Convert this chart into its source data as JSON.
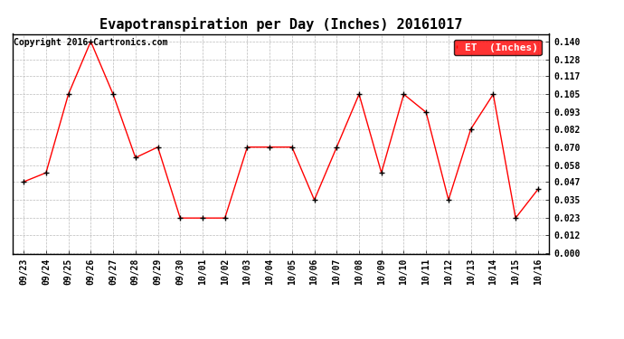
{
  "title": "Evapotranspiration per Day (Inches) 20161017",
  "copyright": "Copyright 2016 Cartronics.com",
  "legend_label": "ET  (Inches)",
  "legend_bg": "#FF0000",
  "legend_text_color": "#FFFFFF",
  "x_labels": [
    "09/23",
    "09/24",
    "09/25",
    "09/26",
    "09/27",
    "09/28",
    "09/29",
    "09/30",
    "10/01",
    "10/02",
    "10/03",
    "10/04",
    "10/05",
    "10/06",
    "10/07",
    "10/08",
    "10/09",
    "10/10",
    "10/11",
    "10/12",
    "10/13",
    "10/14",
    "10/15",
    "10/16"
  ],
  "y_values": [
    0.047,
    0.053,
    0.105,
    0.14,
    0.105,
    0.063,
    0.07,
    0.023,
    0.023,
    0.023,
    0.07,
    0.07,
    0.07,
    0.035,
    0.07,
    0.105,
    0.053,
    0.105,
    0.093,
    0.035,
    0.082,
    0.105,
    0.023,
    0.042
  ],
  "line_color": "#FF0000",
  "marker_color": "#FF0000",
  "marker_edge_color": "#000000",
  "bg_color": "#FFFFFF",
  "grid_color": "#BBBBBB",
  "y_ticks": [
    0.0,
    0.012,
    0.023,
    0.035,
    0.047,
    0.058,
    0.07,
    0.082,
    0.093,
    0.105,
    0.117,
    0.128,
    0.14
  ],
  "ylim_min": 0.0,
  "ylim_max": 0.14,
  "title_fontsize": 11,
  "copyright_fontsize": 7,
  "tick_fontsize": 7,
  "legend_fontsize": 8
}
